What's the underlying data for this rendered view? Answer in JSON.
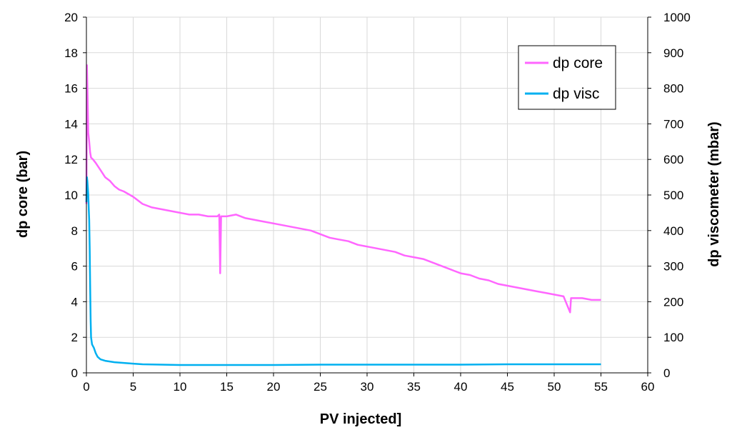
{
  "chart_data": {
    "type": "line",
    "title": "",
    "xlabel": "PV injected]",
    "ylabel": "dp core (bar)",
    "y2label": "dp viscometer (mbar)",
    "xlim": [
      0,
      60
    ],
    "ylim": [
      0,
      20
    ],
    "y2lim": [
      0,
      1000
    ],
    "xticks": [
      "0",
      "5",
      "10",
      "15",
      "20",
      "25",
      "30",
      "35",
      "40",
      "45",
      "50",
      "55",
      "60"
    ],
    "yticks": [
      "0",
      "2",
      "4",
      "6",
      "8",
      "10",
      "12",
      "14",
      "16",
      "18",
      "20"
    ],
    "y2ticks": [
      "0",
      "100",
      "200",
      "300",
      "400",
      "500",
      "600",
      "700",
      "800",
      "900",
      "1000"
    ],
    "grid": true,
    "legend_position": "top-right",
    "series": [
      {
        "name": "dp core",
        "axis": "left",
        "color": "#ff66ff",
        "x": [
          0.0,
          0.05,
          0.1,
          0.15,
          0.2,
          0.3,
          0.4,
          0.5,
          0.7,
          1.0,
          1.5,
          2.0,
          2.5,
          3.0,
          3.5,
          4.0,
          5.0,
          6.0,
          7.0,
          8.0,
          9.0,
          10.0,
          11.0,
          12.0,
          13.0,
          14.0,
          14.2,
          14.3,
          14.4,
          15.0,
          16.0,
          17.0,
          18.0,
          19.0,
          20.0,
          21.0,
          22.0,
          23.0,
          24.0,
          25.0,
          26.0,
          27.0,
          28.0,
          29.0,
          30.0,
          31.0,
          32.0,
          33.0,
          34.0,
          35.0,
          36.0,
          37.0,
          38.0,
          39.0,
          40.0,
          41.0,
          42.0,
          43.0,
          44.0,
          45.0,
          46.0,
          47.0,
          48.0,
          49.0,
          50.0,
          51.0,
          51.7,
          51.8,
          52.0,
          53.0,
          54.0,
          55.0
        ],
        "values": [
          9.5,
          17.3,
          16.2,
          14.8,
          13.5,
          13.0,
          12.4,
          12.1,
          12.0,
          11.8,
          11.4,
          11.0,
          10.8,
          10.5,
          10.3,
          10.2,
          9.9,
          9.5,
          9.3,
          9.2,
          9.1,
          9.0,
          8.9,
          8.9,
          8.8,
          8.8,
          8.9,
          5.6,
          8.8,
          8.8,
          8.9,
          8.7,
          8.6,
          8.5,
          8.4,
          8.3,
          8.2,
          8.1,
          8.0,
          7.8,
          7.6,
          7.5,
          7.4,
          7.2,
          7.1,
          7.0,
          6.9,
          6.8,
          6.6,
          6.5,
          6.4,
          6.2,
          6.0,
          5.8,
          5.6,
          5.5,
          5.3,
          5.2,
          5.0,
          4.9,
          4.8,
          4.7,
          4.6,
          4.5,
          4.4,
          4.3,
          3.4,
          4.2,
          4.2,
          4.2,
          4.1,
          4.1
        ]
      },
      {
        "name": "dp visc",
        "axis": "right",
        "color": "#00b0f0",
        "x": [
          0.0,
          0.05,
          0.1,
          0.15,
          0.2,
          0.25,
          0.3,
          0.35,
          0.4,
          0.45,
          0.5,
          0.6,
          0.8,
          1.0,
          1.2,
          1.5,
          2.0,
          2.5,
          3.0,
          4.0,
          5.0,
          6.0,
          8.0,
          10.0,
          15.0,
          20.0,
          25.0,
          30.0,
          35.0,
          40.0,
          45.0,
          50.0,
          55.0
        ],
        "values": [
          480,
          550,
          540,
          520,
          500,
          460,
          430,
          350,
          250,
          150,
          100,
          80,
          70,
          55,
          45,
          38,
          34,
          32,
          30,
          28,
          26,
          24,
          23,
          22,
          22,
          22,
          23,
          23,
          23,
          23,
          24,
          24,
          24
        ]
      }
    ]
  }
}
